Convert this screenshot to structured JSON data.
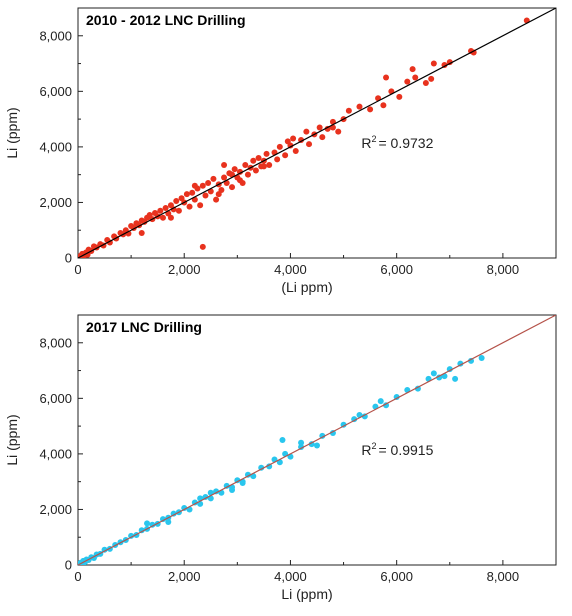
{
  "chart_data": [
    {
      "type": "scatter",
      "title": "2010 - 2012 LNC Drilling",
      "xlabel": "(Li ppm)",
      "ylabel": "Li (ppm)",
      "xlim": [
        0,
        9000
      ],
      "ylim": [
        0,
        9000
      ],
      "xticks": [
        0,
        2000,
        4000,
        6000,
        8000
      ],
      "yticks": [
        0,
        2000,
        4000,
        6000,
        8000
      ],
      "xtick_labels": [
        "0",
        "2,000",
        "4,000",
        "6,000",
        "8,000"
      ],
      "ytick_labels": [
        "0",
        "2,000",
        "4,000",
        "6,000",
        "8,000"
      ],
      "grid": false,
      "point_color": "#e8321e",
      "line_color": "#000000",
      "annotation": {
        "label": "R",
        "sup": "2",
        "value": "= 0.9732",
        "x": 5900,
        "y": 4600
      },
      "trendline": {
        "x": [
          0,
          9000
        ],
        "y": [
          0,
          9000
        ]
      },
      "points": [
        [
          20,
          30
        ],
        [
          50,
          80
        ],
        [
          80,
          150
        ],
        [
          100,
          60
        ],
        [
          150,
          200
        ],
        [
          180,
          120
        ],
        [
          200,
          300
        ],
        [
          250,
          250
        ],
        [
          300,
          420
        ],
        [
          350,
          380
        ],
        [
          420,
          500
        ],
        [
          480,
          450
        ],
        [
          550,
          650
        ],
        [
          600,
          560
        ],
        [
          680,
          780
        ],
        [
          720,
          700
        ],
        [
          800,
          900
        ],
        [
          850,
          850
        ],
        [
          900,
          1000
        ],
        [
          950,
          880
        ],
        [
          1000,
          1150
        ],
        [
          1050,
          1080
        ],
        [
          1100,
          1250
        ],
        [
          1150,
          1180
        ],
        [
          1200,
          1350
        ],
        [
          1250,
          1300
        ],
        [
          1300,
          1450
        ],
        [
          1350,
          1550
        ],
        [
          1400,
          1400
        ],
        [
          1450,
          1620
        ],
        [
          1500,
          1500
        ],
        [
          1550,
          1700
        ],
        [
          1600,
          1450
        ],
        [
          1650,
          1800
        ],
        [
          1700,
          1600
        ],
        [
          1750,
          1900
        ],
        [
          1800,
          1750
        ],
        [
          1850,
          2050
        ],
        [
          1900,
          1700
        ],
        [
          1950,
          2150
        ],
        [
          2000,
          2000
        ],
        [
          2050,
          2300
        ],
        [
          2100,
          1850
        ],
        [
          2150,
          2350
        ],
        [
          2200,
          2100
        ],
        [
          2250,
          2500
        ],
        [
          2300,
          1900
        ],
        [
          2350,
          2600
        ],
        [
          2400,
          2250
        ],
        [
          2450,
          2700
        ],
        [
          2500,
          2400
        ],
        [
          2550,
          2850
        ],
        [
          2600,
          2100
        ],
        [
          2650,
          2650
        ],
        [
          2700,
          2450
        ],
        [
          2750,
          2900
        ],
        [
          2800,
          2700
        ],
        [
          2850,
          3050
        ],
        [
          2900,
          2550
        ],
        [
          2950,
          3200
        ],
        [
          3000,
          2900
        ],
        [
          3050,
          3100
        ],
        [
          3100,
          2700
        ],
        [
          3150,
          3350
        ],
        [
          3200,
          3000
        ],
        [
          3250,
          3250
        ],
        [
          3300,
          3500
        ],
        [
          3350,
          3150
        ],
        [
          3400,
          3600
        ],
        [
          3450,
          3300
        ],
        [
          3500,
          3500
        ],
        [
          3550,
          3750
        ],
        [
          3600,
          3350
        ],
        [
          3700,
          3800
        ],
        [
          3750,
          3550
        ],
        [
          3800,
          4000
        ],
        [
          3900,
          3700
        ],
        [
          4000,
          4050
        ],
        [
          4050,
          4300
        ],
        [
          4100,
          3850
        ],
        [
          4200,
          4250
        ],
        [
          4300,
          4550
        ],
        [
          4350,
          4100
        ],
        [
          4450,
          4450
        ],
        [
          4550,
          4700
        ],
        [
          4600,
          4350
        ],
        [
          4700,
          4650
        ],
        [
          4800,
          4900
        ],
        [
          4900,
          4550
        ],
        [
          5000,
          5000
        ],
        [
          5100,
          5300
        ],
        [
          5300,
          5450
        ],
        [
          5500,
          5350
        ],
        [
          5650,
          5750
        ],
        [
          5750,
          5500
        ],
        [
          5900,
          6000
        ],
        [
          6050,
          5800
        ],
        [
          6200,
          6350
        ],
        [
          6350,
          6500
        ],
        [
          6550,
          6300
        ],
        [
          6650,
          6450
        ],
        [
          6900,
          6950
        ],
        [
          7000,
          7050
        ],
        [
          7400,
          7450
        ],
        [
          2350,
          400
        ],
        [
          6300,
          6800
        ],
        [
          6700,
          7000
        ],
        [
          7450,
          7400
        ],
        [
          8450,
          8550
        ],
        [
          5800,
          6500
        ],
        [
          1750,
          1450
        ],
        [
          2900,
          3000
        ],
        [
          3500,
          3300
        ],
        [
          2200,
          2600
        ],
        [
          4800,
          4700
        ],
        [
          1200,
          900
        ],
        [
          2650,
          2300
        ],
        [
          3950,
          4200
        ],
        [
          3050,
          2800
        ],
        [
          2750,
          3350
        ]
      ]
    },
    {
      "type": "scatter",
      "title": "2017 LNC Drilling",
      "xlabel": "Li (ppm)",
      "ylabel": "Li (ppm)",
      "xlim": [
        0,
        9000
      ],
      "ylim": [
        0,
        9000
      ],
      "xticks": [
        0,
        2000,
        4000,
        6000,
        8000
      ],
      "yticks": [
        0,
        2000,
        4000,
        6000,
        8000
      ],
      "xtick_labels": [
        "0",
        "2,000",
        "4,000",
        "6,000",
        "8,000"
      ],
      "ytick_labels": [
        "0",
        "2,000",
        "4,000",
        "6,000",
        "8,000"
      ],
      "grid": false,
      "point_color": "#29c6ee",
      "line_color": "#b5534a",
      "annotation": {
        "label": "R",
        "sup": "2",
        "value": "= 0.9915",
        "x": 5900,
        "y": 4600
      },
      "trendline": {
        "x": [
          0,
          9000
        ],
        "y": [
          0,
          9000
        ]
      },
      "points": [
        [
          20,
          40
        ],
        [
          50,
          80
        ],
        [
          70,
          30
        ],
        [
          100,
          150
        ],
        [
          130,
          100
        ],
        [
          160,
          200
        ],
        [
          200,
          180
        ],
        [
          250,
          280
        ],
        [
          300,
          250
        ],
        [
          350,
          380
        ],
        [
          420,
          400
        ],
        [
          500,
          550
        ],
        [
          600,
          580
        ],
        [
          700,
          720
        ],
        [
          800,
          820
        ],
        [
          900,
          900
        ],
        [
          1000,
          1050
        ],
        [
          1100,
          1080
        ],
        [
          1200,
          1250
        ],
        [
          1300,
          1300
        ],
        [
          1400,
          1450
        ],
        [
          1500,
          1480
        ],
        [
          1600,
          1650
        ],
        [
          1700,
          1700
        ],
        [
          1800,
          1850
        ],
        [
          1900,
          1900
        ],
        [
          2000,
          2050
        ],
        [
          2100,
          2000
        ],
        [
          2200,
          2250
        ],
        [
          2300,
          2200
        ],
        [
          2400,
          2450
        ],
        [
          2500,
          2400
        ],
        [
          2600,
          2650
        ],
        [
          2700,
          2600
        ],
        [
          2800,
          2850
        ],
        [
          2900,
          2800
        ],
        [
          3000,
          3050
        ],
        [
          3100,
          2950
        ],
        [
          3200,
          3250
        ],
        [
          3300,
          3200
        ],
        [
          3450,
          3500
        ],
        [
          3600,
          3550
        ],
        [
          3700,
          3800
        ],
        [
          3800,
          3700
        ],
        [
          3900,
          4000
        ],
        [
          4000,
          3900
        ],
        [
          4200,
          4250
        ],
        [
          4400,
          4350
        ],
        [
          4600,
          4650
        ],
        [
          4800,
          4750
        ],
        [
          5000,
          5050
        ],
        [
          5200,
          5250
        ],
        [
          5400,
          5350
        ],
        [
          5600,
          5700
        ],
        [
          5800,
          5750
        ],
        [
          6000,
          6050
        ],
        [
          6200,
          6300
        ],
        [
          6400,
          6350
        ],
        [
          6600,
          6700
        ],
        [
          6800,
          6750
        ],
        [
          7000,
          7050
        ],
        [
          7200,
          7250
        ],
        [
          7400,
          7350
        ],
        [
          7600,
          7450
        ],
        [
          3850,
          4500
        ],
        [
          1300,
          1500
        ],
        [
          2500,
          2600
        ],
        [
          3100,
          3000
        ],
        [
          4200,
          4400
        ],
        [
          5300,
          5400
        ],
        [
          5700,
          5900
        ],
        [
          6900,
          6800
        ],
        [
          2900,
          2700
        ],
        [
          2300,
          2400
        ],
        [
          1700,
          1550
        ],
        [
          4500,
          4300
        ],
        [
          6700,
          6900
        ],
        [
          7100,
          6700
        ]
      ]
    }
  ]
}
